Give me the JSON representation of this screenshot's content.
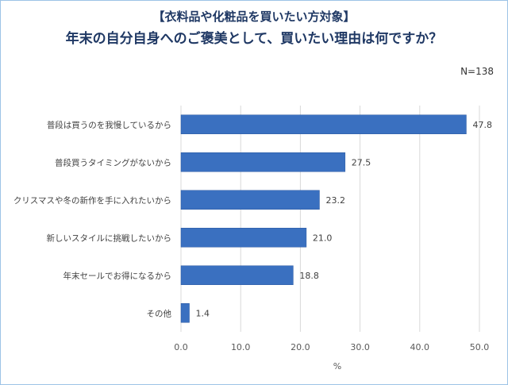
{
  "header": {
    "subtitle": "【衣料品や化粧品を買いたい方対象】",
    "title": "年末の自分自身へのご褒美として、買いたい理由は何ですか？",
    "sample_size": "N=138"
  },
  "colors": {
    "bar": "#3a70c0",
    "bar_border": "#2d5aa0",
    "title": "#1f3864",
    "grid": "#d9d9d9",
    "frame": "#9dc3e6"
  },
  "chart_data": {
    "type": "bar",
    "orientation": "horizontal",
    "categories": [
      "普段は買うのを我慢しているから",
      "普段買うタイミングがないから",
      "クリスマスや冬の新作を手に入れたいから",
      "新しいスタイルに挑戦したいから",
      "年末セールでお得になるから",
      "その他"
    ],
    "values": [
      47.8,
      27.5,
      23.2,
      21.0,
      18.8,
      1.4
    ],
    "value_labels": [
      "47.8",
      "27.5",
      "23.2",
      "21.0",
      "18.8",
      "1.4"
    ],
    "xlim": [
      0,
      50
    ],
    "x_ticks": [
      "0.0",
      "10.0",
      "20.0",
      "30.0",
      "40.0",
      "50.0"
    ],
    "xlabel": "%",
    "grid": true
  }
}
